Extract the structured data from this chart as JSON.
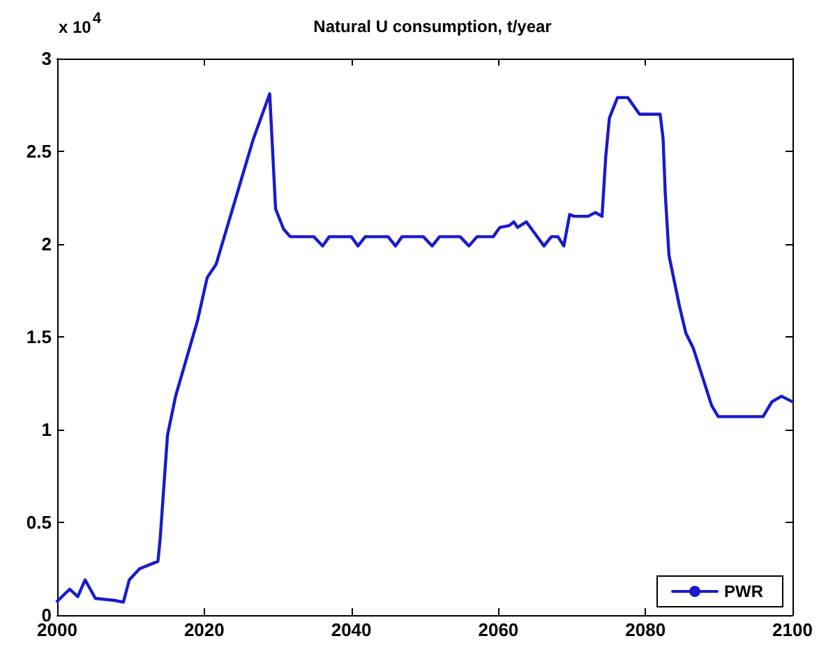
{
  "chart_data": {
    "type": "line",
    "title": "Natural U consumption, t/year",
    "annotations": [
      "x 10$^{4}$"
    ],
    "xlim": [
      2000,
      2100
    ],
    "xticks": [
      2000,
      2020,
      2040,
      2060,
      2080,
      2100
    ],
    "ylim": [
      0,
      3
    ],
    "yticks": [
      0,
      0.5,
      1,
      1.5,
      2,
      2.5,
      3
    ],
    "grid": false,
    "legend": "bottom right",
    "marker": "none",
    "line_style": "solid",
    "series": [
      {
        "name": "PWR",
        "color": "#1a1acc",
        "x": [
          2000,
          2001.7,
          2002.8,
          2003.8,
          2005.2,
          2007.7,
          2009,
          2009.8,
          2011.2,
          2013.7,
          2014,
          2015,
          2016.1,
          2019.1,
          2020.4,
          2021.6,
          2026.7,
          2028.9,
          2029.7,
          2030.8,
          2031.7,
          2034.9,
          2036.1,
          2037,
          2040,
          2040.9,
          2041.9,
          2045,
          2046,
          2046.9,
          2049.8,
          2051,
          2052,
          2054.8,
          2056,
          2057.1,
          2059.3,
          2060.2,
          2061.5,
          2062.1,
          2062.6,
          2063.8,
          2066.2,
          2067.2,
          2068.1,
          2068.9,
          2069.7,
          2070.3,
          2072.2,
          2073.2,
          2074.1,
          2074.6,
          2075.1,
          2076.2,
          2077.6,
          2079.2,
          2082,
          2082.4,
          2082.7,
          2083.2,
          2084.6,
          2085.5,
          2086.5,
          2089,
          2089.9,
          2096,
          2097.2,
          2098.5,
          2100
        ],
        "values": [
          0.075,
          0.14,
          0.1,
          0.19,
          0.09,
          0.08,
          0.07,
          0.19,
          0.25,
          0.29,
          0.41,
          0.97,
          1.18,
          1.59,
          1.82,
          1.89,
          2.57,
          2.81,
          2.19,
          2.08,
          2.04,
          2.04,
          1.99,
          2.04,
          2.04,
          1.99,
          2.04,
          2.04,
          1.99,
          2.04,
          2.04,
          1.99,
          2.04,
          2.04,
          1.99,
          2.04,
          2.04,
          2.09,
          2.1,
          2.12,
          2.09,
          2.12,
          1.99,
          2.04,
          2.04,
          1.99,
          2.16,
          2.15,
          2.15,
          2.17,
          2.15,
          2.47,
          2.68,
          2.79,
          2.79,
          2.7,
          2.7,
          2.57,
          2.27,
          1.94,
          1.67,
          1.52,
          1.44,
          1.13,
          1.07,
          1.07,
          1.15,
          1.18,
          1.15
        ]
      }
    ]
  }
}
